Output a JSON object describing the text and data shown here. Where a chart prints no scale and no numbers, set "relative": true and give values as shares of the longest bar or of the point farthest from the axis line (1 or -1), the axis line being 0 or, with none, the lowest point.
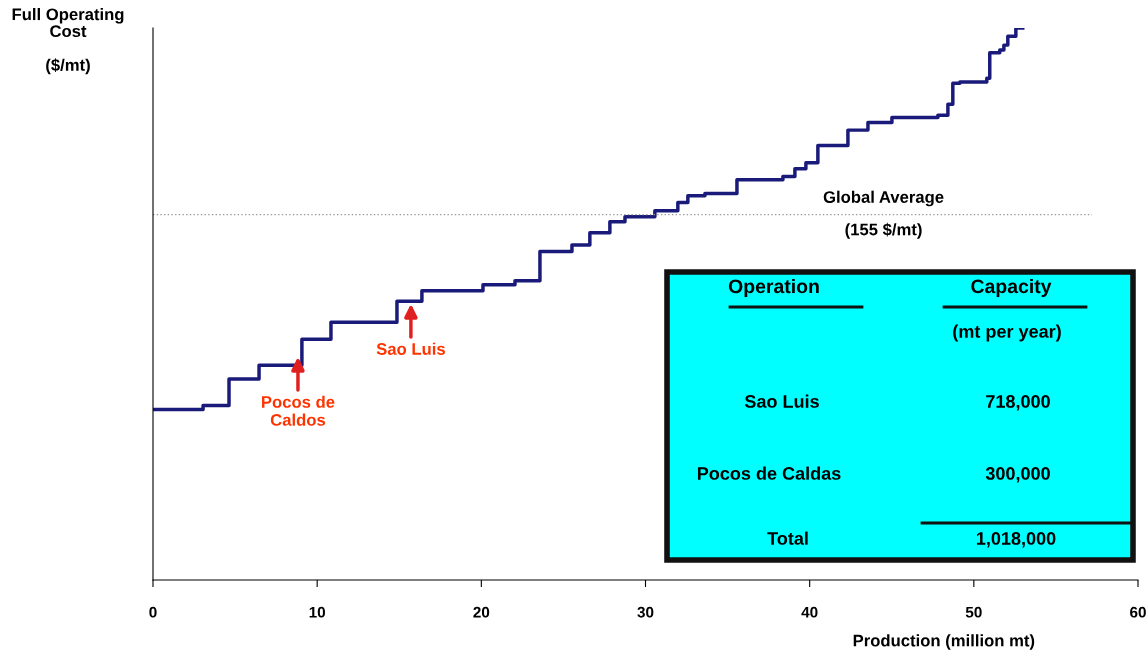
{
  "chart_data": {
    "type": "step",
    "relative": true,
    "ylabel": "Full Operating\nCost\n\n($/mt)",
    "xlabel": "Production (million mt)",
    "x": [
      0,
      3.05,
      4.63,
      6.46,
      9.07,
      10.84,
      14.86,
      16.38,
      20.1,
      22.05,
      23.57,
      25.52,
      26.61,
      27.83,
      28.75,
      30.57,
      31.97,
      32.58,
      33.62,
      35.57,
      38.37,
      39.1,
      39.77,
      40.5,
      42.33,
      43.55,
      45.01,
      47.81,
      48.42,
      48.72,
      49.15,
      50.79,
      50.97,
      51.58,
      51.83,
      52.07,
      52.56,
      52.98
    ],
    "series": [
      {
        "color": "#1a1a7a",
        "values": [
          0.309,
          0.316,
          0.364,
          0.389,
          0.436,
          0.467,
          0.505,
          0.524,
          0.535,
          0.542,
          0.595,
          0.607,
          0.629,
          0.649,
          0.658,
          0.669,
          0.684,
          0.696,
          0.7,
          0.725,
          0.731,
          0.745,
          0.756,
          0.787,
          0.815,
          0.829,
          0.838,
          0.842,
          0.862,
          0.9,
          0.902,
          0.909,
          0.955,
          0.96,
          0.969,
          0.985,
          1.0,
          1.0
        ]
      }
    ],
    "xlim": [
      0,
      60
    ],
    "xticks": [
      0,
      10,
      20,
      30,
      40,
      50,
      60
    ],
    "tick_labels": "x",
    "grid": false,
    "ref_lines": [
      {
        "axis": "y",
        "value": 0.662,
        "label": "Global Average",
        "color": "#999999",
        "line_style": "dotted"
      }
    ],
    "annotations": [
      "(155 $/mt)",
      {
        "text": "Pocos de\nCaldos",
        "x": 8.83,
        "y": 0.409
      },
      {
        "text": "Sao Luis",
        "x": 15.71,
        "y": 0.505
      },
      "Operation",
      "Capacity",
      "(mt per year)",
      "Sao Luis",
      "718,000",
      "Pocos de Caldas",
      "300,000",
      "Total",
      "1,018,000"
    ]
  }
}
